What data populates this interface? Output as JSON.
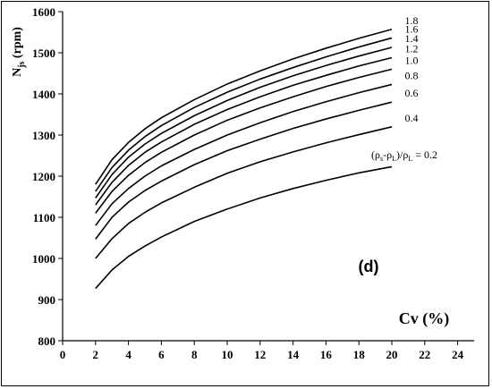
{
  "chart_data": {
    "type": "line",
    "panel_label": "(d)",
    "xlabel": "Cv (%)",
    "ylabel": "Njs (rpm)",
    "xlim": [
      0,
      25
    ],
    "ylim": [
      800,
      1600
    ],
    "xticks": [
      0,
      2,
      4,
      6,
      8,
      10,
      12,
      14,
      16,
      18,
      20,
      22,
      24
    ],
    "yticks": [
      800,
      900,
      1000,
      1100,
      1200,
      1300,
      1400,
      1500,
      1600
    ],
    "grid": false,
    "series_label_prefix": "(ρs-ρL)/ρL",
    "x": [
      2,
      3,
      4,
      5,
      6,
      8,
      10,
      12,
      14,
      16,
      18,
      20
    ],
    "series": [
      {
        "name": "0.2",
        "values": [
          927,
          972,
          1005,
          1030,
          1052,
          1090,
          1120,
          1147,
          1170,
          1190,
          1208,
          1223
        ]
      },
      {
        "name": "0.4",
        "values": [
          1000,
          1048,
          1085,
          1112,
          1135,
          1173,
          1207,
          1235,
          1259,
          1281,
          1301,
          1320
        ]
      },
      {
        "name": "0.6",
        "values": [
          1047,
          1100,
          1137,
          1165,
          1188,
          1228,
          1262,
          1290,
          1316,
          1339,
          1360,
          1380
        ]
      },
      {
        "name": "0.8",
        "values": [
          1080,
          1133,
          1170,
          1200,
          1225,
          1265,
          1300,
          1330,
          1357,
          1381,
          1403,
          1423
        ]
      },
      {
        "name": "1.0",
        "values": [
          1110,
          1163,
          1202,
          1233,
          1258,
          1300,
          1336,
          1366,
          1393,
          1418,
          1440,
          1460
        ]
      },
      {
        "name": "1.2",
        "values": [
          1130,
          1185,
          1226,
          1258,
          1283,
          1326,
          1362,
          1393,
          1421,
          1445,
          1468,
          1488
        ]
      },
      {
        "name": "1.4",
        "values": [
          1147,
          1204,
          1246,
          1278,
          1304,
          1347,
          1384,
          1416,
          1444,
          1469,
          1492,
          1513
        ]
      },
      {
        "name": "1.6",
        "values": [
          1163,
          1221,
          1263,
          1296,
          1323,
          1367,
          1404,
          1436,
          1464,
          1490,
          1514,
          1536
        ]
      },
      {
        "name": "1.8",
        "values": [
          1180,
          1240,
          1282,
          1315,
          1342,
          1386,
          1424,
          1456,
          1485,
          1511,
          1535,
          1557
        ]
      }
    ]
  }
}
